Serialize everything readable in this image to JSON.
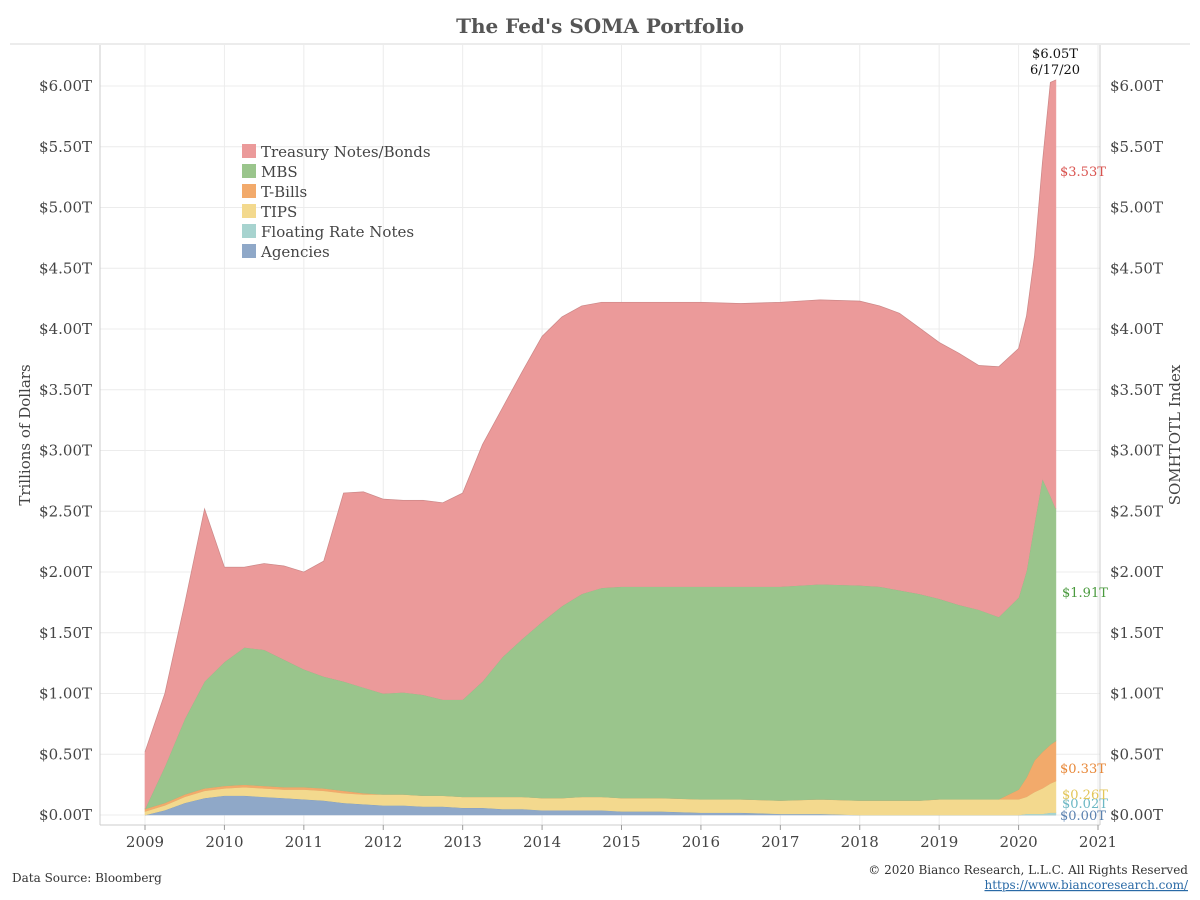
{
  "chart_data": {
    "type": "area",
    "title": "The Fed's SOMA Portfolio",
    "ylabel_left": "Trillions of Dollars",
    "ylabel_right": "SOMHTOTL Index",
    "x_ticks": [
      "2009",
      "2010",
      "2011",
      "2012",
      "2013",
      "2014",
      "2015",
      "2016",
      "2017",
      "2018",
      "2019",
      "2020",
      "2021"
    ],
    "y_ticks": [
      "$0.00T",
      "$0.50T",
      "$1.00T",
      "$1.50T",
      "$2.00T",
      "$2.50T",
      "$3.00T",
      "$3.50T",
      "$4.00T",
      "$4.50T",
      "$5.00T",
      "$5.50T",
      "$6.00T"
    ],
    "ylim": [
      0,
      6.3
    ],
    "xlim": [
      2008.4,
      2021.2
    ],
    "grid": true,
    "stacked": true,
    "legend_position": "top-left",
    "x": [
      2009.0,
      2009.25,
      2009.5,
      2009.75,
      2010.0,
      2010.25,
      2010.5,
      2010.75,
      2011.0,
      2011.25,
      2011.5,
      2011.75,
      2012.0,
      2012.25,
      2012.5,
      2012.75,
      2013.0,
      2013.25,
      2013.5,
      2013.75,
      2014.0,
      2014.25,
      2014.5,
      2014.75,
      2015.0,
      2015.5,
      2016.0,
      2016.5,
      2017.0,
      2017.5,
      2018.0,
      2018.25,
      2018.5,
      2018.75,
      2019.0,
      2019.25,
      2019.5,
      2019.75,
      2020.0,
      2020.1,
      2020.2,
      2020.3,
      2020.4,
      2020.47
    ],
    "series": [
      {
        "name": "Agencies",
        "color": "#8fa8c8",
        "end_label": "$0.00T",
        "values": [
          0.0,
          0.04,
          0.1,
          0.14,
          0.16,
          0.16,
          0.15,
          0.14,
          0.13,
          0.12,
          0.1,
          0.09,
          0.08,
          0.08,
          0.07,
          0.07,
          0.06,
          0.06,
          0.05,
          0.05,
          0.04,
          0.04,
          0.04,
          0.04,
          0.03,
          0.03,
          0.02,
          0.02,
          0.01,
          0.01,
          0.0,
          0.0,
          0.0,
          0.0,
          0.0,
          0.0,
          0.0,
          0.0,
          0.0,
          0.0,
          0.0,
          0.0,
          0.0,
          0.0
        ]
      },
      {
        "name": "Floating Rate Notes",
        "color": "#a7d3cf",
        "end_label": "$0.02T",
        "values": [
          0.0,
          0.0,
          0.0,
          0.0,
          0.0,
          0.0,
          0.0,
          0.0,
          0.0,
          0.0,
          0.0,
          0.0,
          0.0,
          0.0,
          0.0,
          0.0,
          0.0,
          0.0,
          0.0,
          0.0,
          0.0,
          0.0,
          0.0,
          0.0,
          0.0,
          0.0,
          0.0,
          0.0,
          0.0,
          0.0,
          0.0,
          0.0,
          0.0,
          0.0,
          0.0,
          0.0,
          0.0,
          0.0,
          0.0,
          0.01,
          0.01,
          0.01,
          0.02,
          0.02
        ]
      },
      {
        "name": "TIPS",
        "color": "#f3d98e",
        "end_label": "$0.26T",
        "values": [
          0.03,
          0.04,
          0.05,
          0.06,
          0.06,
          0.07,
          0.07,
          0.07,
          0.08,
          0.08,
          0.08,
          0.08,
          0.09,
          0.09,
          0.09,
          0.09,
          0.09,
          0.09,
          0.1,
          0.1,
          0.1,
          0.1,
          0.11,
          0.11,
          0.11,
          0.11,
          0.11,
          0.11,
          0.11,
          0.12,
          0.12,
          0.12,
          0.12,
          0.12,
          0.13,
          0.13,
          0.13,
          0.13,
          0.13,
          0.14,
          0.18,
          0.21,
          0.24,
          0.26
        ]
      },
      {
        "name": "T-Bills",
        "color": "#f2aa6b",
        "end_label": "$0.33T",
        "values": [
          0.02,
          0.02,
          0.02,
          0.02,
          0.02,
          0.02,
          0.02,
          0.02,
          0.02,
          0.02,
          0.02,
          0.01,
          0.0,
          0.0,
          0.0,
          0.0,
          0.0,
          0.0,
          0.0,
          0.0,
          0.0,
          0.0,
          0.0,
          0.0,
          0.0,
          0.0,
          0.0,
          0.0,
          0.0,
          0.0,
          0.0,
          0.0,
          0.0,
          0.0,
          0.0,
          0.0,
          0.0,
          0.0,
          0.08,
          0.16,
          0.26,
          0.3,
          0.32,
          0.33
        ]
      },
      {
        "name": "MBS",
        "color": "#9ac58c",
        "end_label": "$1.91T",
        "values": [
          0.0,
          0.3,
          0.62,
          0.88,
          1.02,
          1.13,
          1.12,
          1.05,
          0.97,
          0.92,
          0.9,
          0.87,
          0.83,
          0.84,
          0.83,
          0.79,
          0.8,
          0.95,
          1.15,
          1.3,
          1.45,
          1.58,
          1.67,
          1.72,
          1.74,
          1.74,
          1.75,
          1.75,
          1.76,
          1.77,
          1.77,
          1.76,
          1.73,
          1.7,
          1.65,
          1.6,
          1.56,
          1.5,
          1.58,
          1.7,
          1.95,
          2.25,
          2.05,
          1.91
        ]
      },
      {
        "name": "Treasury Notes/Bonds",
        "color": "#eb9a9a",
        "end_label": "$3.53T",
        "values": [
          0.47,
          0.6,
          0.95,
          1.42,
          0.78,
          0.66,
          0.71,
          0.77,
          0.8,
          0.95,
          1.55,
          1.61,
          1.6,
          1.58,
          1.6,
          1.62,
          1.7,
          1.95,
          2.05,
          2.2,
          2.35,
          2.38,
          2.37,
          2.35,
          2.34,
          2.34,
          2.34,
          2.33,
          2.34,
          2.34,
          2.34,
          2.31,
          2.28,
          2.19,
          2.11,
          2.07,
          2.01,
          2.06,
          2.05,
          2.1,
          2.2,
          2.6,
          3.4,
          3.53
        ]
      }
    ],
    "annotation": {
      "value": "$6.05T",
      "date": "6/17/20"
    },
    "source_text": "Data Source: Bloomberg",
    "copyright_text": "© 2020 Bianco Research, L.L.C. All Rights Reserved",
    "url_text": "https://www.biancoresearch.com/"
  }
}
